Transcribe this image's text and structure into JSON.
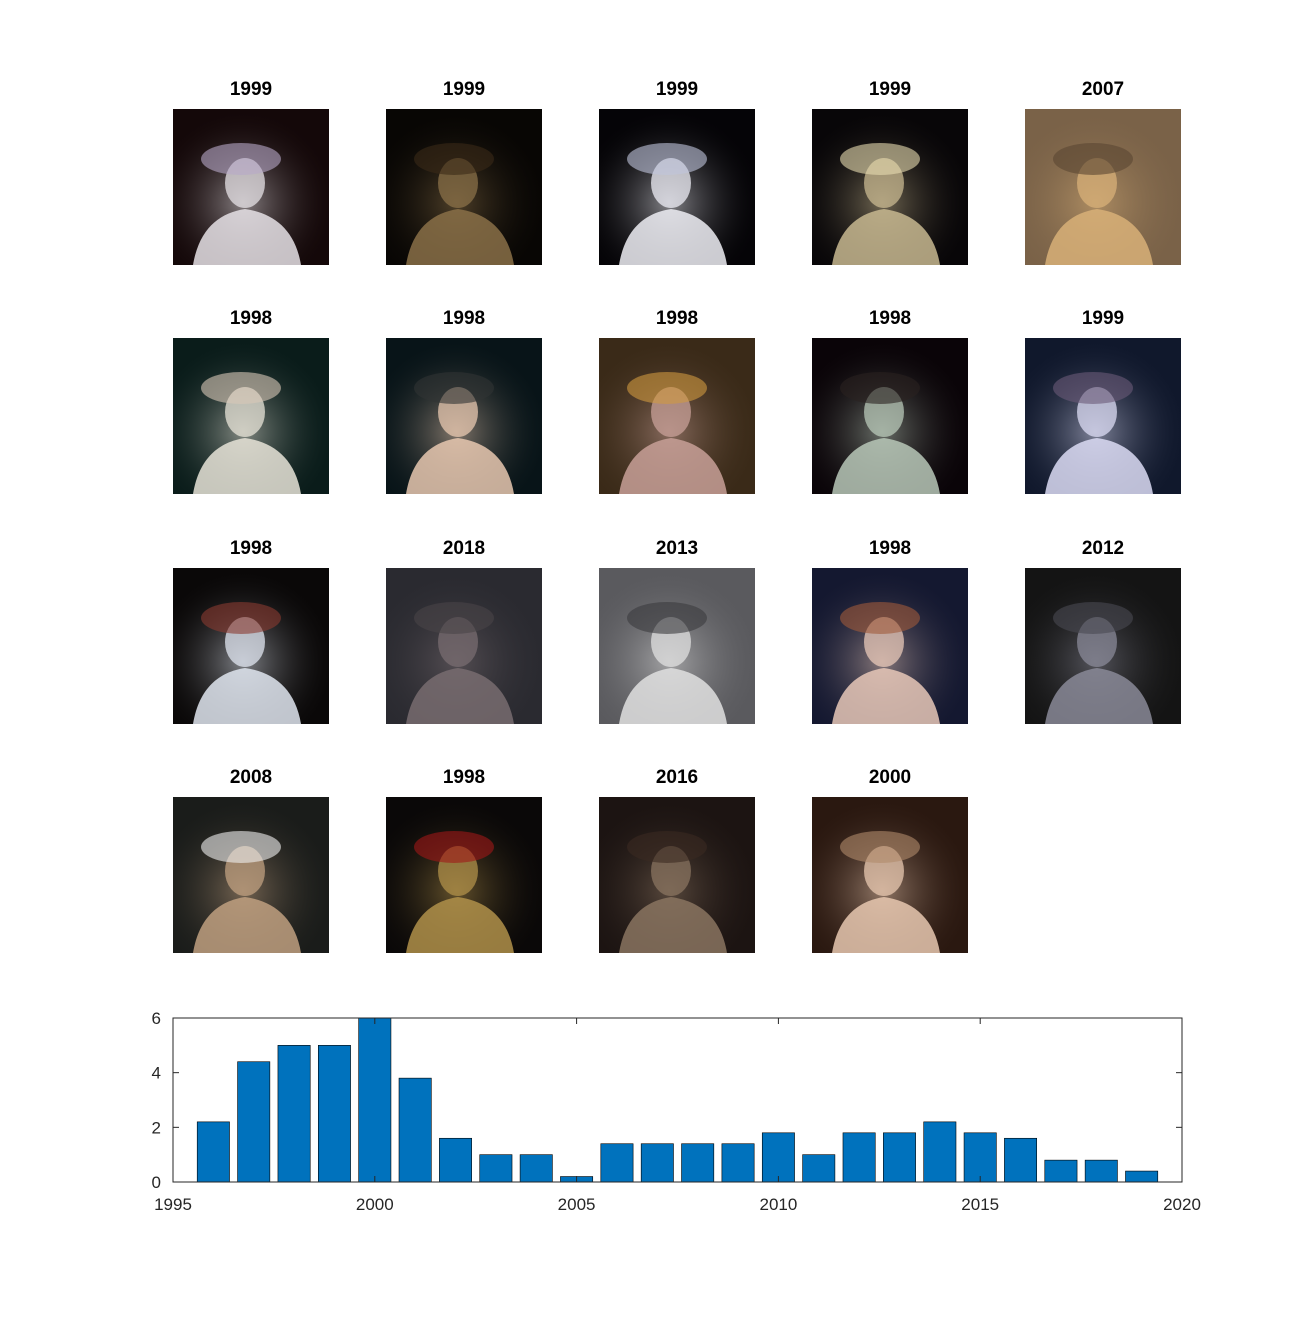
{
  "thumbnails": [
    {
      "year": "1999",
      "palette": {
        "bg": "#140809",
        "fg": "#e6e2e6",
        "accent": "#b8a8c8"
      }
    },
    {
      "year": "1999",
      "palette": {
        "bg": "#080604",
        "fg": "#8a7048",
        "accent": "#3a2a18"
      }
    },
    {
      "year": "1999",
      "palette": {
        "bg": "#050407",
        "fg": "#eeeef5",
        "accent": "#c0c4dc"
      }
    },
    {
      "year": "1999",
      "palette": {
        "bg": "#080608",
        "fg": "#c8b890",
        "accent": "#e8dcb0"
      }
    },
    {
      "year": "2007",
      "palette": {
        "bg": "#7a6248",
        "fg": "#d8b078",
        "accent": "#5a4632"
      }
    },
    {
      "year": "1998",
      "palette": {
        "bg": "#0a1c1a",
        "fg": "#e8e4d8",
        "accent": "#d8c8b8"
      }
    },
    {
      "year": "1998",
      "palette": {
        "bg": "#081418",
        "fg": "#e8c8b0",
        "accent": "#303434"
      }
    },
    {
      "year": "1998",
      "palette": {
        "bg": "#3a2a18",
        "fg": "#c8a098",
        "accent": "#d09a40"
      }
    },
    {
      "year": "1998",
      "palette": {
        "bg": "#0a0408",
        "fg": "#b8c8b8",
        "accent": "#2a2220"
      }
    },
    {
      "year": "1999",
      "palette": {
        "bg": "#10182c",
        "fg": "#dcdcf4",
        "accent": "#6a5a78"
      }
    },
    {
      "year": "1998",
      "palette": {
        "bg": "#0a0808",
        "fg": "#e0e6f0",
        "accent": "#8a3a30"
      }
    },
    {
      "year": "2018",
      "palette": {
        "bg": "#2a2a30",
        "fg": "#786c70",
        "accent": "#4a4448"
      }
    },
    {
      "year": "2013",
      "palette": {
        "bg": "#5a5a5e",
        "fg": "#e0e0e0",
        "accent": "#3a3a3e"
      }
    },
    {
      "year": "1998",
      "palette": {
        "bg": "#141830",
        "fg": "#e8c8b8",
        "accent": "#a05a3a"
      }
    },
    {
      "year": "2012",
      "palette": {
        "bg": "#141414",
        "fg": "#8a8a98",
        "accent": "#4a4a52"
      }
    },
    {
      "year": "2008",
      "palette": {
        "bg": "#1a1c1a",
        "fg": "#c0a080",
        "accent": "#f0f0f0"
      }
    },
    {
      "year": "1998",
      "palette": {
        "bg": "#0a0808",
        "fg": "#b0904a",
        "accent": "#a01818"
      }
    },
    {
      "year": "2016",
      "palette": {
        "bg": "#1c1412",
        "fg": "#8a7460",
        "accent": "#3a2a22"
      }
    },
    {
      "year": "2000",
      "palette": {
        "bg": "#2a1810",
        "fg": "#e8c8b0",
        "accent": "#b08a6a"
      }
    }
  ],
  "chart_data": {
    "type": "bar",
    "title": "",
    "xlabel": "",
    "ylabel": "",
    "x": [
      1996,
      1997,
      1998,
      1999,
      2000,
      2001,
      2002,
      2003,
      2004,
      2005,
      2006,
      2007,
      2008,
      2009,
      2010,
      2011,
      2012,
      2013,
      2014,
      2015,
      2016,
      2017,
      2018,
      2019
    ],
    "values": [
      2.2,
      4.4,
      5,
      5,
      6,
      3.8,
      1.6,
      1,
      1,
      0.2,
      1.4,
      1.4,
      1.4,
      1.4,
      1.8,
      1,
      1.8,
      1.8,
      2.2,
      1.8,
      1.6,
      0.8,
      0.8,
      0.4
    ],
    "xlim": [
      1995,
      2020
    ],
    "ylim": [
      0,
      6
    ],
    "xticks": [
      "1995",
      "2000",
      "2005",
      "2010",
      "2015",
      "2020"
    ],
    "yticks": [
      "0",
      "2",
      "4",
      "6"
    ],
    "bar_color": "#0072bd",
    "grid": false,
    "legend": "none"
  }
}
